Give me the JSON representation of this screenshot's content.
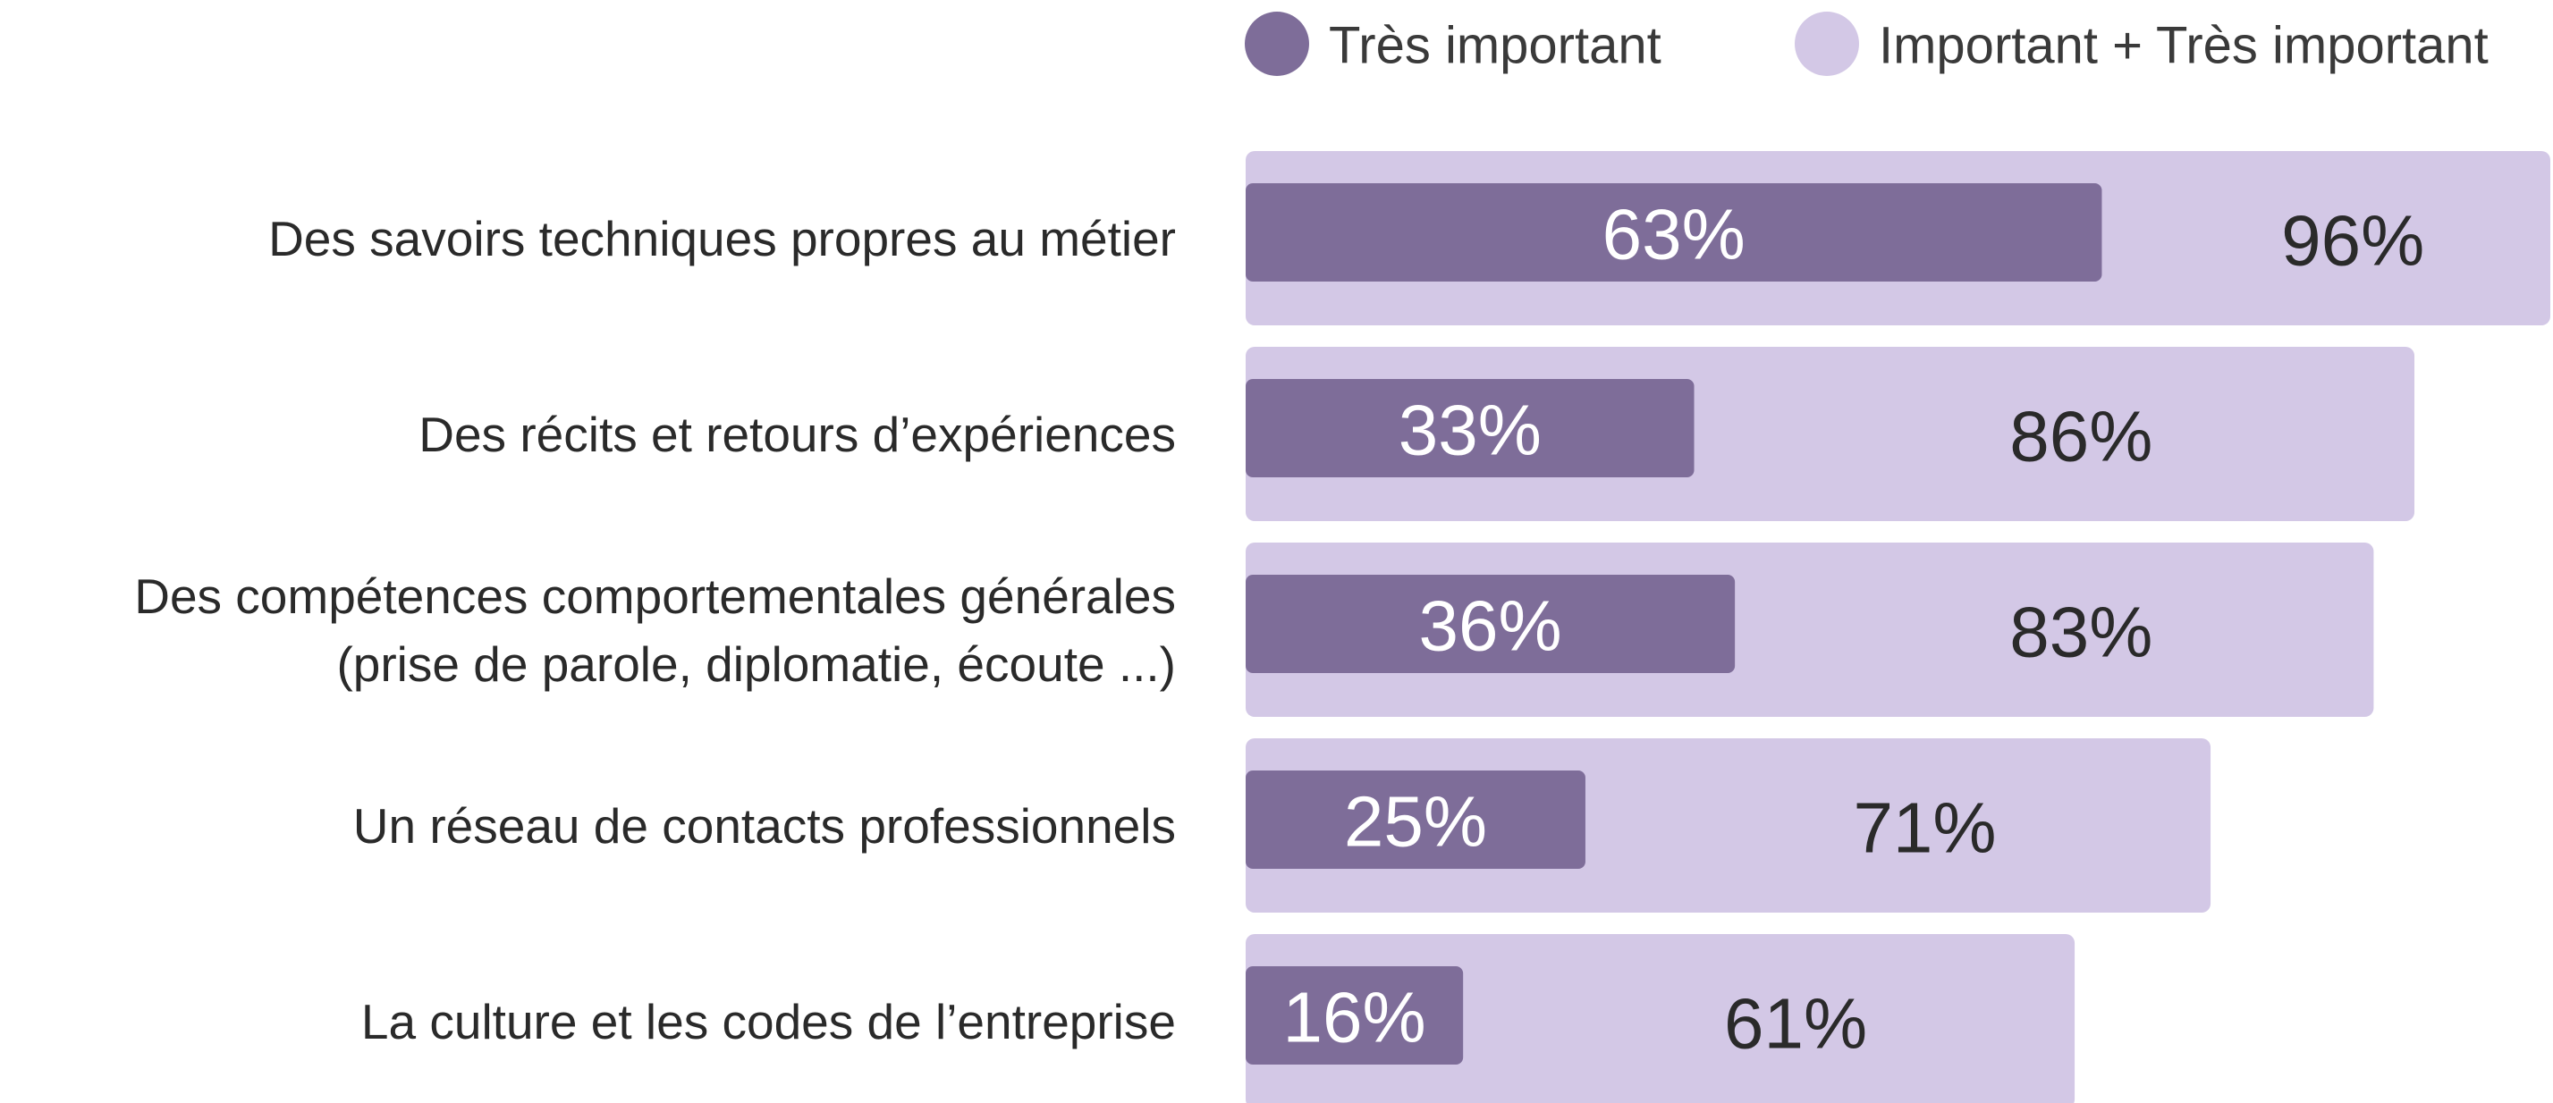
{
  "chart_data": {
    "type": "bar",
    "orientation": "horizontal",
    "overlap": true,
    "categories": [
      "Des savoirs techniques propres au métier",
      "Des récits et retours d’expériences",
      "Des compétences comportementales générales (prise de parole, diplomatie, écoute ...)",
      "Un réseau de contacts professionnels",
      "La culture et les codes de l’entreprise"
    ],
    "series": [
      {
        "name": "Important + Très important",
        "color": "#d3c8e6",
        "values": [
          96,
          86,
          83,
          71,
          61
        ],
        "value_labels": [
          "96%",
          "86%",
          "83%",
          "71%",
          "61%"
        ]
      },
      {
        "name": "Très important",
        "color": "#7e6d99",
        "values": [
          63,
          33,
          36,
          25,
          16
        ],
        "value_labels": [
          "63%",
          "33%",
          "36%",
          "25%",
          "16%"
        ]
      }
    ],
    "xlim": [
      0,
      100
    ]
  }
}
